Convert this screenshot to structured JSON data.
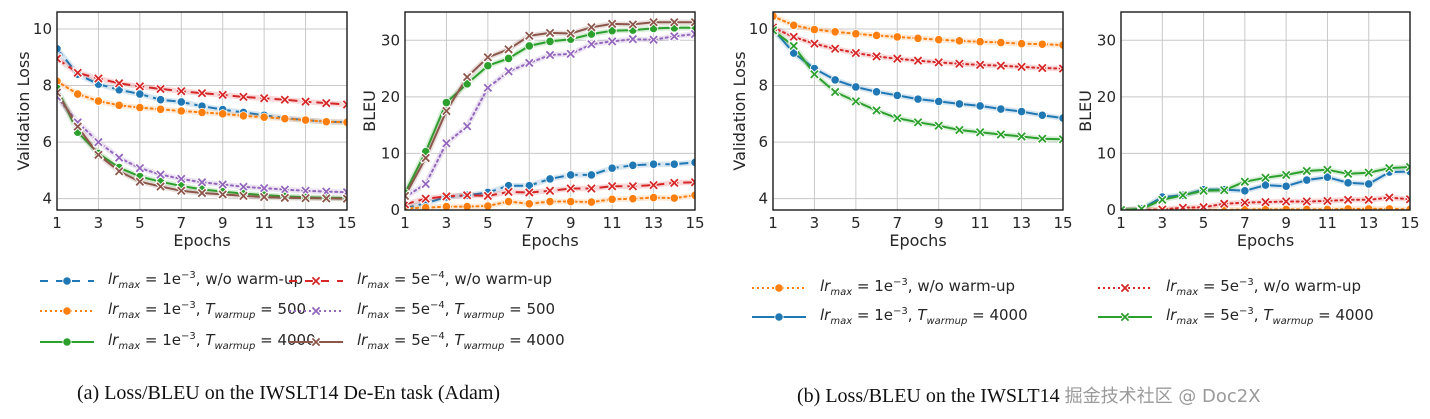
{
  "chart_data": [
    {
      "type": "line",
      "panel": "a-left",
      "title": "",
      "xlabel": "Epochs",
      "ylabel": "Validation Loss",
      "xlim": [
        1,
        15
      ],
      "ylim": [
        3.6,
        10.6
      ],
      "xticks": [
        "1",
        "3",
        "5",
        "7",
        "9",
        "11",
        "13",
        "15"
      ],
      "yticks": [
        "4",
        "6",
        "8",
        "10"
      ],
      "ytick_values": [
        4,
        6,
        8,
        10
      ],
      "grid": true,
      "x": [
        1,
        2,
        3,
        4,
        5,
        6,
        7,
        8,
        9,
        10,
        11,
        12,
        13,
        14,
        15
      ],
      "series": [
        {
          "name": "lr_max = 1e-3, w/o warm-up",
          "color": "#1f77b4",
          "style": "dashed",
          "marker": "circle",
          "values": [
            9.3,
            8.4,
            8.05,
            7.85,
            7.7,
            7.5,
            7.42,
            7.27,
            7.15,
            7.05,
            6.95,
            6.85,
            6.78,
            6.72,
            6.7
          ]
        },
        {
          "name": "lr_max = 1e-3, T_warmup = 500",
          "color": "#ff7f0e",
          "style": "dotted",
          "marker": "circle",
          "values": [
            8.15,
            7.7,
            7.45,
            7.3,
            7.22,
            7.16,
            7.1,
            7.05,
            7.0,
            6.93,
            6.88,
            6.83,
            6.78,
            6.72,
            6.7
          ]
        },
        {
          "name": "lr_max = 1e-3, T_warmup = 4000",
          "color": "#2ca02c",
          "style": "solid",
          "marker": "circle",
          "values": [
            7.9,
            6.35,
            5.6,
            5.1,
            4.78,
            4.6,
            4.45,
            4.33,
            4.25,
            4.18,
            4.13,
            4.08,
            4.05,
            4.03,
            4.02
          ]
        },
        {
          "name": "lr_max = 5e-4, w/o warm-up",
          "color": "#d62728",
          "style": "dashed",
          "marker": "x",
          "values": [
            8.95,
            8.45,
            8.25,
            8.08,
            7.97,
            7.88,
            7.8,
            7.73,
            7.67,
            7.6,
            7.55,
            7.5,
            7.43,
            7.38,
            7.33
          ]
        },
        {
          "name": "lr_max = 5e-4, T_warmup = 500",
          "color": "#9467bd",
          "style": "dotted",
          "marker": "x",
          "values": [
            7.6,
            6.7,
            6.0,
            5.45,
            5.08,
            4.85,
            4.7,
            4.58,
            4.5,
            4.42,
            4.37,
            4.32,
            4.28,
            4.25,
            4.23
          ]
        },
        {
          "name": "lr_max = 5e-4, T_warmup = 4000",
          "color": "#8c564b",
          "style": "solid",
          "marker": "x",
          "values": [
            7.75,
            6.55,
            5.55,
            4.97,
            4.6,
            4.43,
            4.28,
            4.2,
            4.15,
            4.1,
            4.06,
            4.03,
            4.02,
            4.01,
            4.0
          ]
        }
      ]
    },
    {
      "type": "line",
      "panel": "a-right",
      "title": "",
      "xlabel": "Epochs",
      "ylabel": "BLEU",
      "xlim": [
        1,
        15
      ],
      "ylim": [
        0,
        35
      ],
      "xticks": [
        "1",
        "3",
        "5",
        "7",
        "9",
        "11",
        "13",
        "15"
      ],
      "yticks": [
        "0",
        "10",
        "20",
        "30"
      ],
      "ytick_values": [
        0,
        10,
        20,
        30
      ],
      "grid": true,
      "x": [
        1,
        2,
        3,
        4,
        5,
        6,
        7,
        8,
        9,
        10,
        11,
        12,
        13,
        14,
        15
      ],
      "series": [
        {
          "name": "lr_max = 1e-3, w/o warm-up",
          "color": "#1f77b4",
          "style": "dashed",
          "marker": "circle",
          "values": [
            0.3,
            1.2,
            2.3,
            2.6,
            3.1,
            4.3,
            4.3,
            5.5,
            6.2,
            6.2,
            7.4,
            7.9,
            8.1,
            8.1,
            8.4
          ]
        },
        {
          "name": "lr_max = 1e-3, T_warmup = 500",
          "color": "#ff7f0e",
          "style": "dotted",
          "marker": "circle",
          "values": [
            0.3,
            0.4,
            0.6,
            0.6,
            0.7,
            1.5,
            1.1,
            1.5,
            1.5,
            1.4,
            1.9,
            2.0,
            2.2,
            2.1,
            2.6
          ]
        },
        {
          "name": "lr_max = 1e-3, T_warmup = 4000",
          "color": "#2ca02c",
          "style": "solid",
          "marker": "circle",
          "values": [
            3.0,
            10.3,
            19.0,
            22.3,
            25.5,
            26.8,
            29.0,
            29.8,
            30.2,
            31.1,
            31.7,
            31.8,
            32.1,
            32.2,
            32.2
          ]
        },
        {
          "name": "lr_max = 5e-4, w/o warm-up",
          "color": "#d62728",
          "style": "dashed",
          "marker": "x",
          "values": [
            1.0,
            2.0,
            2.4,
            2.6,
            2.5,
            3.2,
            3.1,
            3.4,
            3.8,
            3.8,
            4.2,
            4.2,
            4.4,
            4.8,
            4.9
          ]
        },
        {
          "name": "lr_max = 5e-4, T_warmup = 500",
          "color": "#9467bd",
          "style": "dotted",
          "marker": "x",
          "values": [
            2.3,
            4.6,
            11.8,
            14.8,
            21.6,
            24.5,
            26.0,
            27.4,
            27.6,
            29.3,
            29.8,
            30.2,
            30.1,
            30.7,
            31.1
          ]
        },
        {
          "name": "lr_max = 5e-4, T_warmup = 4000",
          "color": "#8c564b",
          "style": "solid",
          "marker": "x",
          "values": [
            2.5,
            9.2,
            17.5,
            23.5,
            27.0,
            28.4,
            30.8,
            31.3,
            31.2,
            32.3,
            32.9,
            32.8,
            33.2,
            33.2,
            33.2
          ]
        }
      ]
    },
    {
      "type": "line",
      "panel": "b-left",
      "title": "",
      "xlabel": "Epochs",
      "ylabel": "Validation Loss",
      "xlim": [
        1,
        15
      ],
      "ylim": [
        3.6,
        10.6
      ],
      "xticks": [
        "1",
        "3",
        "5",
        "7",
        "9",
        "11",
        "13",
        "15"
      ],
      "yticks": [
        "4",
        "6",
        "8",
        "10"
      ],
      "ytick_values": [
        4,
        6,
        8,
        10
      ],
      "grid": true,
      "x": [
        1,
        2,
        3,
        4,
        5,
        6,
        7,
        8,
        9,
        10,
        11,
        12,
        13,
        14,
        15
      ],
      "series": [
        {
          "name": "lr_max = 1e-3, w/o warm-up",
          "color": "#ff7f0e",
          "style": "dotted",
          "marker": "circle",
          "values": [
            10.45,
            10.13,
            9.98,
            9.9,
            9.83,
            9.77,
            9.72,
            9.67,
            9.62,
            9.58,
            9.55,
            9.52,
            9.48,
            9.46,
            9.43
          ]
        },
        {
          "name": "lr_max = 1e-3, T_warmup = 4000",
          "color": "#1f77b4",
          "style": "solid",
          "marker": "circle",
          "values": [
            10.0,
            9.15,
            8.6,
            8.2,
            7.95,
            7.78,
            7.65,
            7.52,
            7.44,
            7.35,
            7.28,
            7.17,
            7.08,
            6.95,
            6.85
          ]
        },
        {
          "name": "lr_max = 5e-3, w/o warm-up",
          "color": "#d62728",
          "style": "dotted",
          "marker": "x",
          "values": [
            10.05,
            9.72,
            9.48,
            9.3,
            9.15,
            9.03,
            8.95,
            8.88,
            8.82,
            8.77,
            8.73,
            8.7,
            8.66,
            8.62,
            8.6
          ]
        },
        {
          "name": "lr_max = 5e-3, T_warmup = 4000",
          "color": "#2ca02c",
          "style": "solid",
          "marker": "x",
          "values": [
            9.95,
            9.4,
            8.4,
            7.77,
            7.44,
            7.12,
            6.85,
            6.7,
            6.58,
            6.43,
            6.35,
            6.27,
            6.2,
            6.12,
            6.1
          ]
        }
      ]
    },
    {
      "type": "line",
      "panel": "b-right",
      "title": "",
      "xlabel": "Epochs",
      "ylabel": "BLEU",
      "xlim": [
        1,
        15
      ],
      "ylim": [
        0,
        35
      ],
      "xticks": [
        "1",
        "3",
        "5",
        "7",
        "9",
        "11",
        "13",
        "15"
      ],
      "yticks": [
        "0",
        "10",
        "20",
        "30"
      ],
      "ytick_values": [
        0,
        10,
        20,
        30
      ],
      "grid": true,
      "x": [
        1,
        2,
        3,
        4,
        5,
        6,
        7,
        8,
        9,
        10,
        11,
        12,
        13,
        14,
        15
      ],
      "series": [
        {
          "name": "lr_max = 1e-3, w/o warm-up",
          "color": "#ff7f0e",
          "style": "dotted",
          "marker": "circle",
          "values": [
            0.0,
            0.0,
            0.0,
            0.0,
            0.0,
            0.0,
            0.1,
            0.1,
            0.1,
            0.1,
            0.1,
            0.2,
            0.2,
            0.2,
            0.1
          ]
        },
        {
          "name": "lr_max = 1e-3, T_warmup = 4000",
          "color": "#1f77b4",
          "style": "solid",
          "marker": "circle",
          "values": [
            0.0,
            0.2,
            2.3,
            2.6,
            3.6,
            3.6,
            3.4,
            4.4,
            4.2,
            5.3,
            5.8,
            4.8,
            4.6,
            6.7,
            6.8
          ]
        },
        {
          "name": "lr_max = 5e-3, w/o warm-up",
          "color": "#d62728",
          "style": "dotted",
          "marker": "x",
          "values": [
            0.0,
            0.0,
            0.1,
            0.4,
            0.5,
            1.1,
            1.3,
            1.4,
            1.5,
            1.5,
            1.6,
            1.8,
            1.8,
            2.2,
            1.9
          ]
        },
        {
          "name": "lr_max = 5e-3, T_warmup = 4000",
          "color": "#2ca02c",
          "style": "solid",
          "marker": "x",
          "values": [
            0.0,
            0.2,
            1.8,
            2.6,
            3.4,
            3.5,
            5.0,
            5.7,
            6.2,
            6.9,
            7.1,
            6.4,
            6.6,
            7.4,
            7.6
          ]
        }
      ]
    }
  ],
  "legends": {
    "a": [
      {
        "lr": "1e",
        "exp": "−3",
        "suffix_plain": ", w/o warm-up",
        "warm": "",
        "color": "#1f77b4",
        "style": "dashed",
        "marker": "circle"
      },
      {
        "lr": "5e",
        "exp": "−4",
        "suffix_plain": ", w/o warm-up",
        "warm": "",
        "color": "#d62728",
        "style": "dashed",
        "marker": "x"
      },
      {
        "lr": "1e",
        "exp": "−3",
        "suffix_plain": "",
        "warm": "500",
        "color": "#ff7f0e",
        "style": "dotted",
        "marker": "circle"
      },
      {
        "lr": "5e",
        "exp": "−4",
        "suffix_plain": "",
        "warm": "500",
        "color": "#9467bd",
        "style": "dotted",
        "marker": "x"
      },
      {
        "lr": "1e",
        "exp": "−3",
        "suffix_plain": "",
        "warm": "4000",
        "color": "#2ca02c",
        "style": "solid",
        "marker": "circle"
      },
      {
        "lr": "5e",
        "exp": "−4",
        "suffix_plain": "",
        "warm": "4000",
        "color": "#8c564b",
        "style": "solid",
        "marker": "x"
      }
    ],
    "b": [
      {
        "lr": "1e",
        "exp": "−3",
        "suffix_plain": ", w/o warm-up",
        "warm": "",
        "color": "#ff7f0e",
        "style": "dotted",
        "marker": "circle"
      },
      {
        "lr": "5e",
        "exp": "−3",
        "suffix_plain": ", w/o warm-up",
        "warm": "",
        "color": "#d62728",
        "style": "dotted",
        "marker": "x"
      },
      {
        "lr": "1e",
        "exp": "−3",
        "suffix_plain": "",
        "warm": "4000",
        "color": "#1f77b4",
        "style": "solid",
        "marker": "circle"
      },
      {
        "lr": "5e",
        "exp": "−3",
        "suffix_plain": "",
        "warm": "4000",
        "color": "#2ca02c",
        "style": "solid",
        "marker": "x"
      }
    ],
    "lr_symbol": "lr",
    "lr_sub": "max",
    "t_symbol": "T",
    "t_sub": "warmup"
  },
  "captions": {
    "a": "(a) Loss/BLEU on the IWSLT14 De-En task (Adam)",
    "b": "(b) Loss/BLEU on the IWSLT14 ",
    "watermark": "掘金技术社区 @ Doc2X"
  }
}
